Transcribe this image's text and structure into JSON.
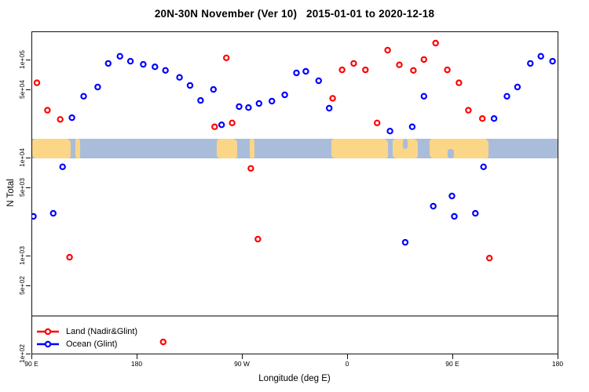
{
  "title": "20N-30N November (Ver 10)   2015-01-01 to 2020-12-18",
  "axes": {
    "y_title": "N Total",
    "x_title": "Longitude (deg E)",
    "y_ticks": [
      {
        "label": "1e+05",
        "v": 100000
      },
      {
        "label": "5e+04",
        "v": 50000
      },
      {
        "label": "1e+04",
        "v": 10000
      },
      {
        "label": "5e+03",
        "v": 5000
      },
      {
        "label": "1e+03",
        "v": 1000
      },
      {
        "label": "5e+02",
        "v": 500
      },
      {
        "label": "1e+02",
        "v": 100
      }
    ],
    "x_ticks": [
      {
        "label": "90 E",
        "t": 0
      },
      {
        "label": "180",
        "t": 90
      },
      {
        "label": "90 W",
        "t": 180
      },
      {
        "label": "0",
        "t": 270
      },
      {
        "label": "90 E",
        "t": 360
      },
      {
        "label": "180",
        "t": 450
      }
    ]
  },
  "legend": {
    "items": [
      {
        "label": "Land (Nadir&Glint)",
        "color": "#ff0000"
      },
      {
        "label": "Ocean (Glint)",
        "color": "#0000ff"
      }
    ]
  },
  "map": {
    "land_color": "#fbd687",
    "ocean_color": "#a9bddb",
    "top_value": 15800,
    "bottom_value": 10000,
    "land_segments": [
      {
        "t0": 0,
        "t1": 33
      },
      {
        "t0": 37,
        "t1": 41
      },
      {
        "t0": 158,
        "t1": 175
      },
      {
        "t0": 186,
        "t1": 190
      },
      {
        "t0": 256,
        "t1": 304
      },
      {
        "t0": 308,
        "t1": 330
      },
      {
        "t0": 340,
        "t1": 390
      }
    ],
    "ocean_notches": [
      {
        "t0": 355,
        "t1": 361,
        "pos": "bottom"
      },
      {
        "t0": 317,
        "t1": 321,
        "pos": "top"
      }
    ]
  },
  "reference_line": {
    "value": 250,
    "color": "#7d7d7d"
  },
  "chart_data": {
    "type": "scatter",
    "title": "20N-30N November (Ver 10)   2015-01-01 to 2020-12-18",
    "xlabel": "Longitude (deg E)",
    "ylabel": "N Total",
    "x_axis": {
      "start_label": "90 E",
      "span_deg": 450,
      "note": "t = degrees east of 90E along axis",
      "ticks_deg": [
        0,
        90,
        180,
        270,
        360,
        450
      ]
    },
    "y_axis": {
      "scale": "log10",
      "ylim": [
        100,
        194000
      ]
    },
    "legend_position": "bottom-left",
    "grid": false,
    "series": [
      {
        "name": "Land (Nadir&Glint)",
        "color": "#ff0000",
        "marker": "open-circle",
        "points": [
          [
            4,
            59000
          ],
          [
            13,
            31000
          ],
          [
            24,
            25000
          ],
          [
            32,
            980
          ],
          [
            112,
            134
          ],
          [
            156,
            21000
          ],
          [
            166,
            106000
          ],
          [
            171,
            23000
          ],
          [
            187,
            7900
          ],
          [
            193,
            1500
          ],
          [
            257,
            41000
          ],
          [
            265,
            80000
          ],
          [
            275,
            93000
          ],
          [
            285,
            80000
          ],
          [
            295,
            23000
          ],
          [
            304,
            127000
          ],
          [
            314,
            90000
          ],
          [
            326,
            79000
          ],
          [
            335,
            102000
          ],
          [
            345,
            150000
          ],
          [
            355,
            80000
          ],
          [
            365,
            59000
          ],
          [
            373,
            31000
          ],
          [
            385,
            25500
          ],
          [
            391,
            960
          ]
        ]
      },
      {
        "name": "Ocean (Glint)",
        "color": "#0000ff",
        "marker": "open-circle",
        "points": [
          [
            1,
            2560
          ],
          [
            18,
            2750
          ],
          [
            26,
            8200
          ],
          [
            34,
            26000
          ],
          [
            44,
            43000
          ],
          [
            56,
            53500
          ],
          [
            65,
            93000
          ],
          [
            75,
            110000
          ],
          [
            84,
            98000
          ],
          [
            95,
            91000
          ],
          [
            105,
            86000
          ],
          [
            114,
            79000
          ],
          [
            126,
            67000
          ],
          [
            135,
            55500
          ],
          [
            144,
            39000
          ],
          [
            155,
            50500
          ],
          [
            162,
            22000
          ],
          [
            177,
            33700
          ],
          [
            185,
            33000
          ],
          [
            194,
            36300
          ],
          [
            205,
            38400
          ],
          [
            216,
            44500
          ],
          [
            226,
            74500
          ],
          [
            234,
            77300
          ],
          [
            245,
            62000
          ],
          [
            254,
            32500
          ],
          [
            306,
            19000
          ],
          [
            319,
            1390
          ],
          [
            325,
            21000
          ],
          [
            335,
            43000
          ],
          [
            343,
            3250
          ],
          [
            359,
            4130
          ],
          [
            361,
            2560
          ],
          [
            379,
            2750
          ],
          [
            386,
            8200
          ],
          [
            395,
            25500
          ],
          [
            406,
            43000
          ],
          [
            415,
            53500
          ],
          [
            426,
            93000
          ],
          [
            435,
            110000
          ],
          [
            445,
            98000
          ]
        ]
      }
    ]
  }
}
